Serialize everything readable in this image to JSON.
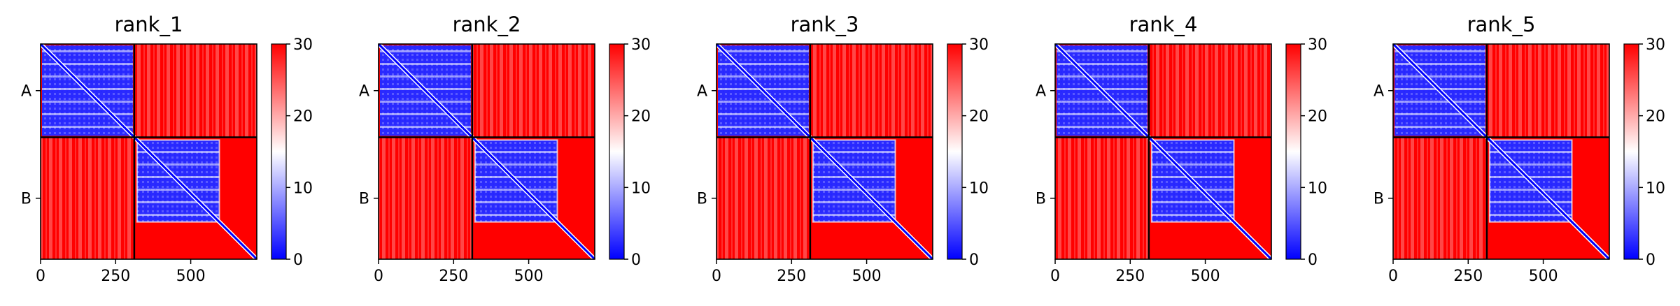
{
  "chart_data": {
    "type": "heatmap",
    "description_colormap": "bwr",
    "color_low": "#0000ff",
    "color_mid": "#ffffff",
    "color_high": "#ff0000",
    "colorbar": {
      "min": 0,
      "max": 30,
      "ticks": [
        0,
        10,
        20,
        30
      ]
    },
    "x_range": [
      0,
      720
    ],
    "x_ticks": [
      0,
      250,
      500
    ],
    "chain_boundary": 312,
    "chains": [
      {
        "label": "A",
        "start": 0,
        "end": 312
      },
      {
        "label": "B",
        "start": 312,
        "end": 720
      }
    ],
    "domain_end_B": 600,
    "panels": [
      {
        "title": "rank_1"
      },
      {
        "title": "rank_2"
      },
      {
        "title": "rank_3"
      },
      {
        "title": "rank_4"
      },
      {
        "title": "rank_5"
      }
    ]
  }
}
